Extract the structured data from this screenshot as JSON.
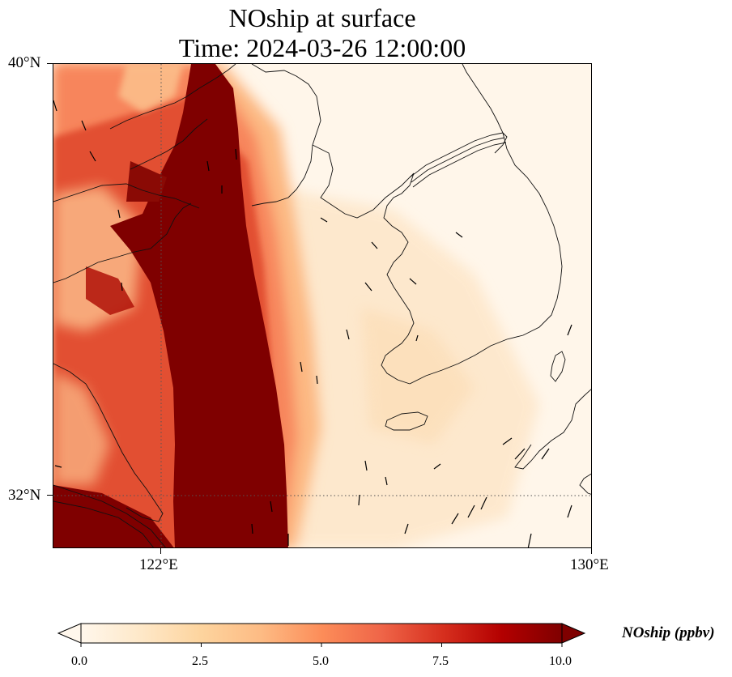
{
  "figure": {
    "title_line1": "NOship at surface",
    "title_line2": "Time: 2024-03-26 12:00:00"
  },
  "map": {
    "lon_range": [
      120,
      130
    ],
    "lat_range": [
      31,
      40
    ],
    "lat_ticks": [
      {
        "value": 40,
        "label": "40°N"
      },
      {
        "value": 32,
        "label": "32°N"
      }
    ],
    "lon_ticks": [
      {
        "value": 122,
        "label": "122°E"
      },
      {
        "value": 130,
        "label": "130°E"
      }
    ],
    "gridlines": {
      "lon": [
        122
      ],
      "lat": [
        32
      ],
      "style": "dotted"
    },
    "variable": "NOship",
    "units": "ppbv"
  },
  "colorbar": {
    "label": "NOship (ppbv)",
    "min": 0.0,
    "max": 10.0,
    "extend": "both",
    "colormap": "OrRd",
    "tick_labels": [
      "0.0",
      "2.5",
      "5.0",
      "7.5",
      "10.0"
    ],
    "colors": [
      "#fff7ec",
      "#fee8c8",
      "#fdd49e",
      "#fdbb84",
      "#fc8d59",
      "#ef6548",
      "#d7301f",
      "#b30000",
      "#7f0000"
    ]
  }
}
